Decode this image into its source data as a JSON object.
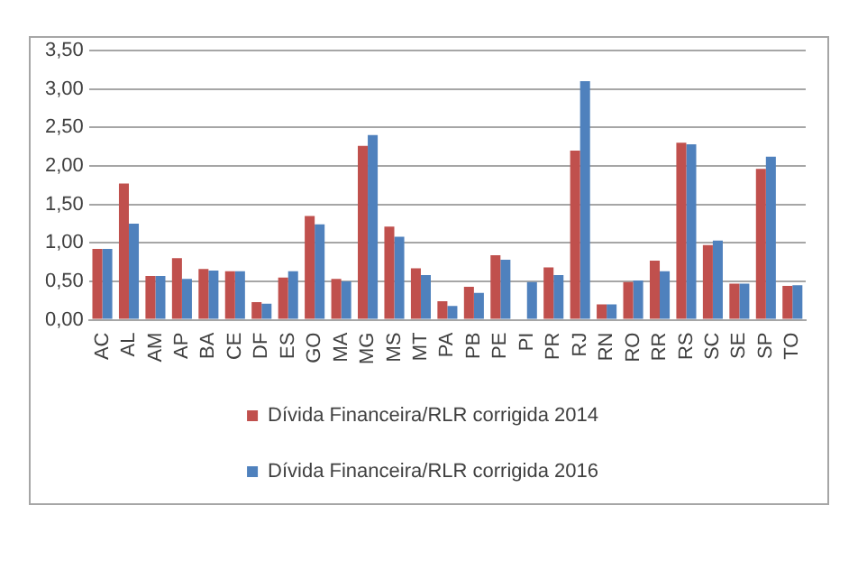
{
  "chart_data": {
    "type": "bar",
    "categories": [
      "AC",
      "AL",
      "AM",
      "AP",
      "BA",
      "CE",
      "DF",
      "ES",
      "GO",
      "MA",
      "MG",
      "MS",
      "MT",
      "PA",
      "PB",
      "PE",
      "PI",
      "PR",
      "RJ",
      "RN",
      "RO",
      "RR",
      "RS",
      "SC",
      "SE",
      "SP",
      "TO"
    ],
    "series": [
      {
        "name": "Dívida Financeira/RLR corrigida 2014",
        "color": "#c0504d",
        "values": [
          0.92,
          1.77,
          0.57,
          0.8,
          0.66,
          0.63,
          0.23,
          0.55,
          1.35,
          0.53,
          2.26,
          1.21,
          0.67,
          0.24,
          0.43,
          0.84,
          null,
          0.68,
          2.2,
          0.2,
          0.49,
          0.77,
          2.3,
          0.97,
          0.47,
          1.96,
          0.44
        ]
      },
      {
        "name": "Dívida Financeira/RLR corrigida 2016",
        "color": "#4f81bd",
        "values": [
          0.92,
          1.25,
          0.57,
          0.53,
          0.64,
          0.63,
          0.21,
          0.63,
          1.24,
          0.5,
          2.4,
          1.08,
          0.58,
          0.18,
          0.35,
          0.78,
          0.49,
          0.58,
          3.1,
          0.2,
          0.51,
          0.63,
          2.28,
          1.03,
          0.47,
          2.12,
          0.45
        ]
      }
    ],
    "ylim": [
      0,
      3.5
    ],
    "yticks": [
      {
        "value": 0,
        "label": "0,00"
      },
      {
        "value": 0.5,
        "label": "0,50"
      },
      {
        "value": 1,
        "label": "1,00"
      },
      {
        "value": 1.5,
        "label": "1,50"
      },
      {
        "value": 2,
        "label": "2,00"
      },
      {
        "value": 2.5,
        "label": "2,50"
      },
      {
        "value": 3,
        "label": "3,00"
      },
      {
        "value": 3.5,
        "label": "3,50"
      }
    ],
    "grid": "y",
    "legend": "bottom"
  }
}
